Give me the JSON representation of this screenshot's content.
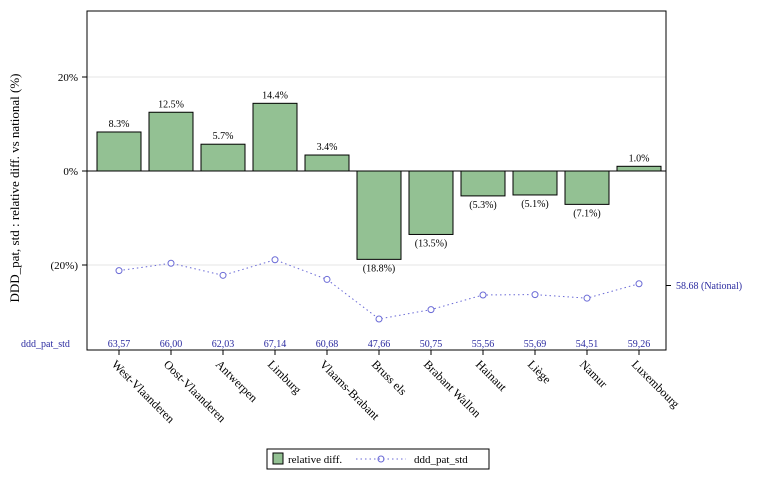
{
  "chart_data": {
    "type": "bar",
    "ylabel": "DDD_pat, std : relative diff. vs national (%)",
    "ylim": [
      -40,
      35
    ],
    "yticks": [
      {
        "value": 20,
        "label": "20%"
      },
      {
        "value": 0,
        "label": "0%"
      },
      {
        "value": -20,
        "label": "(20%)"
      }
    ],
    "grid": true,
    "categories": [
      "West-Vlaanderen",
      "Oost-Vlaanderen",
      "Antwerpen",
      "Limburg",
      "Vlaams-Brabant",
      "Bruss els",
      "Brabant Wallon",
      "Hainaut",
      "Liège",
      "Namur",
      "Luxembourg"
    ],
    "series": [
      {
        "name": "relative diff.",
        "type": "bar",
        "color": "#93c193",
        "values": [
          8.3,
          12.5,
          5.7,
          14.4,
          3.4,
          -18.8,
          -13.5,
          -5.3,
          -5.1,
          -7.1,
          1.0
        ],
        "labels": [
          "8.3%",
          "12.5%",
          "5.7%",
          "14.4%",
          "3.4%",
          "(18.8%)",
          "(13.5%)",
          "(5.3%)",
          "(5.1%)",
          "(7.1%)",
          "1.0%"
        ]
      },
      {
        "name": "ddd_pat_std",
        "type": "line",
        "color": "#6a6ad6",
        "values": [
          63.57,
          66.0,
          62.03,
          67.14,
          60.68,
          47.66,
          50.75,
          55.56,
          55.69,
          54.51,
          59.26
        ],
        "labels": [
          "63,57",
          "66,00",
          "62,03",
          "67,14",
          "60,68",
          "47,66",
          "50,75",
          "55,56",
          "55,69",
          "54,51",
          "59,26"
        ]
      }
    ],
    "secondary_axis": {
      "national_value": 58.68,
      "national_label": "58.68 (National)"
    },
    "value_row_label": "ddd_pat_std",
    "legend": {
      "position": "bottom",
      "items": [
        "relative diff.",
        "ddd_pat_std"
      ]
    }
  }
}
